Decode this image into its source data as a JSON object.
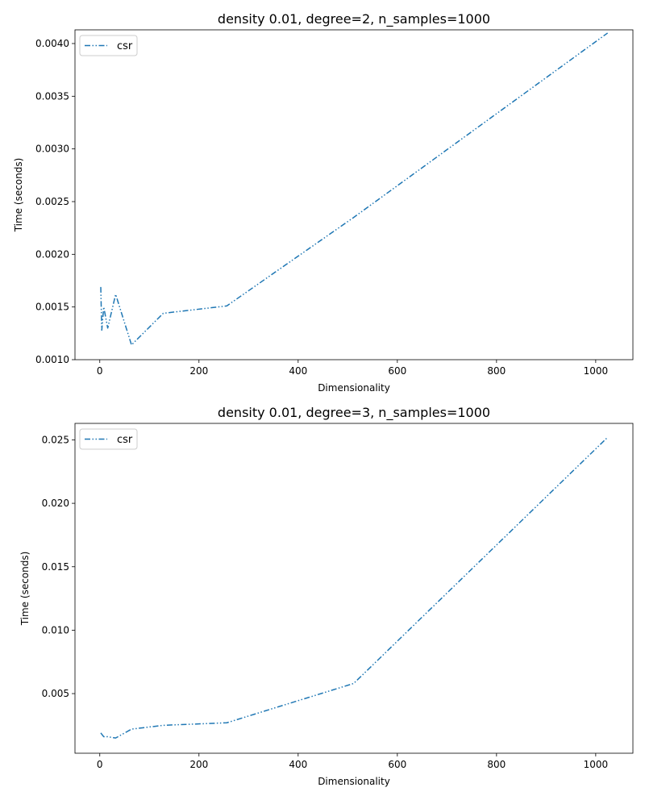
{
  "chart_data": [
    {
      "type": "line",
      "title": "density 0.01, degree=2, n_samples=1000",
      "xlabel": "Dimensionality",
      "ylabel": "Time (seconds)",
      "xlim": [
        -50,
        1075
      ],
      "ylim": [
        0.001,
        0.00413
      ],
      "xticks": [
        0,
        200,
        400,
        600,
        800,
        1000
      ],
      "xtick_labels": [
        "0",
        "200",
        "400",
        "600",
        "800",
        "1000"
      ],
      "yticks": [
        0.001,
        0.0015,
        0.002,
        0.0025,
        0.003,
        0.0035,
        0.004
      ],
      "ytick_labels": [
        "0.0010",
        "0.0015",
        "0.0020",
        "0.0025",
        "0.0030",
        "0.0035",
        "0.0040"
      ],
      "grid": false,
      "legend_position": "upper-left",
      "series": [
        {
          "name": "csr",
          "color": "#1f77b4",
          "linestyle": "dash-dot-dot",
          "x": [
            2,
            4,
            8,
            16,
            32,
            64,
            128,
            256,
            512,
            1024
          ],
          "y": [
            0.00169,
            0.00128,
            0.0015,
            0.0013,
            0.00162,
            0.00114,
            0.00144,
            0.00151,
            0.00235,
            0.0041
          ]
        }
      ]
    },
    {
      "type": "line",
      "title": "density 0.01, degree=3, n_samples=1000",
      "xlabel": "Dimensionality",
      "ylabel": "Time (seconds)",
      "xlim": [
        -50,
        1075
      ],
      "ylim": [
        0.0003,
        0.0263
      ],
      "xticks": [
        0,
        200,
        400,
        600,
        800,
        1000
      ],
      "xtick_labels": [
        "0",
        "200",
        "400",
        "600",
        "800",
        "1000"
      ],
      "yticks": [
        0.005,
        0.01,
        0.015,
        0.02,
        0.025
      ],
      "ytick_labels": [
        "0.005",
        "0.010",
        "0.015",
        "0.020",
        "0.025"
      ],
      "grid": false,
      "legend_position": "upper-left",
      "series": [
        {
          "name": "csr",
          "color": "#1f77b4",
          "linestyle": "dash-dot-dot",
          "x": [
            2,
            4,
            8,
            16,
            32,
            64,
            128,
            256,
            512,
            1024
          ],
          "y": [
            0.0019,
            0.0018,
            0.0016,
            0.0016,
            0.0015,
            0.0022,
            0.0025,
            0.0027,
            0.0058,
            0.0252
          ]
        }
      ]
    }
  ]
}
